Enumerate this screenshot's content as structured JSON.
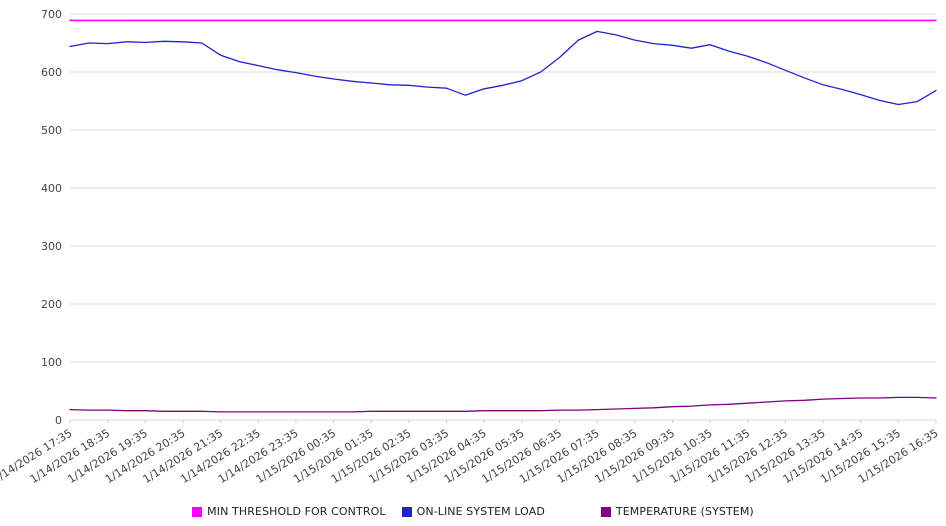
{
  "chart_data": {
    "type": "line",
    "title": "",
    "xlabel": "",
    "ylabel": "",
    "ylim": [
      0,
      700
    ],
    "y_ticks": [
      0,
      100,
      200,
      300,
      400,
      500,
      600,
      700
    ],
    "grid": "horizontal",
    "legend_position": "bottom",
    "points_per_label": 2,
    "x_tick_labels": [
      "1/14/2026 17:35",
      "1/14/2026 18:35",
      "1/14/2026 19:35",
      "1/14/2026 20:35",
      "1/14/2026 21:35",
      "1/14/2026 22:35",
      "1/14/2026 23:35",
      "1/15/2026 00:35",
      "1/15/2026 01:35",
      "1/15/2026 02:35",
      "1/15/2026 03:35",
      "1/15/2026 04:35",
      "1/15/2026 05:35",
      "1/15/2026 06:35",
      "1/15/2026 07:35",
      "1/15/2026 08:35",
      "1/15/2026 09:35",
      "1/15/2026 10:35",
      "1/15/2026 11:35",
      "1/15/2026 12:35",
      "1/15/2026 13:35",
      "1/15/2026 14:35",
      "1/15/2026 15:35",
      "1/15/2026 16:35"
    ],
    "series": [
      {
        "name": "MIN THRESHOLD FOR CONTROL",
        "color": "#ff00ff",
        "constant": 689
      },
      {
        "name": "ON-LINE SYSTEM LOAD",
        "color": "#2222cc",
        "values": [
          644,
          650,
          649,
          652,
          651,
          653,
          652,
          650,
          629,
          618,
          611,
          604,
          599,
          593,
          588,
          584,
          581,
          578,
          577,
          574,
          572,
          560,
          571,
          577,
          585,
          600,
          625,
          655,
          670,
          664,
          655,
          649,
          646,
          641,
          647,
          636,
          627,
          616,
          603,
          590,
          578,
          570,
          561,
          551,
          544,
          549,
          568
        ]
      },
      {
        "name": "TEMPERATURE (SYSTEM)",
        "color": "#800080",
        "values": [
          18,
          17,
          17,
          16,
          16,
          15,
          15,
          15,
          14,
          14,
          14,
          14,
          14,
          14,
          14,
          14,
          15,
          15,
          15,
          15,
          15,
          15,
          16,
          16,
          16,
          16,
          17,
          17,
          18,
          19,
          20,
          21,
          23,
          24,
          26,
          27,
          29,
          31,
          33,
          34,
          36,
          37,
          38,
          38,
          39,
          39,
          38
        ]
      }
    ]
  },
  "colors": {
    "gridline": "#dddddd",
    "tick_text": "#444444",
    "legend_text": "#222222",
    "background": "#ffffff"
  }
}
